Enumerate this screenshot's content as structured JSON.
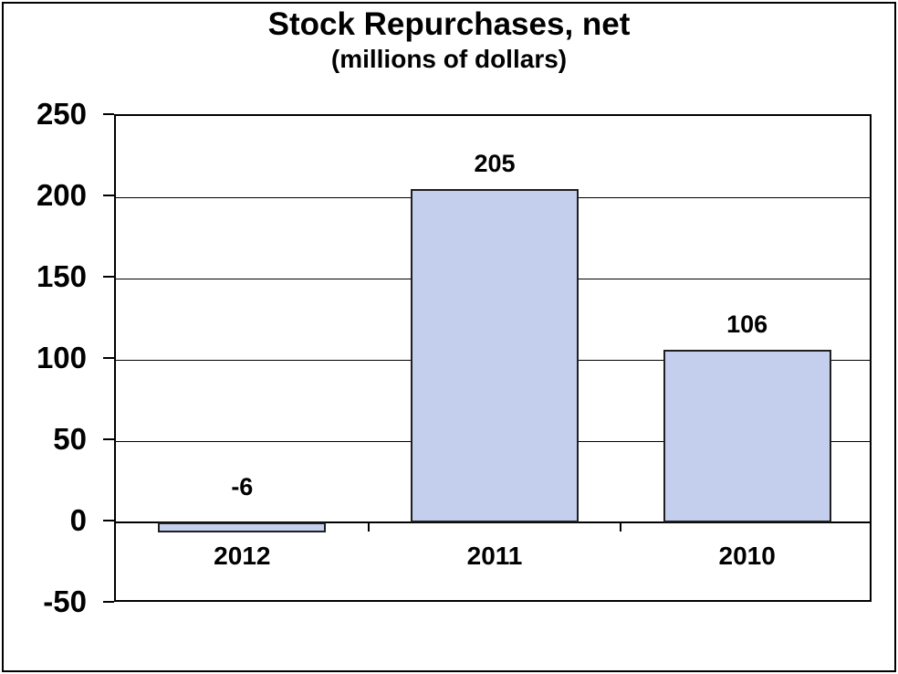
{
  "chart_data": {
    "type": "bar",
    "title": "Stock Repurchases, net",
    "subtitle": "(millions of dollars)",
    "categories": [
      "2012",
      "2011",
      "2010"
    ],
    "values": [
      -6,
      205,
      106
    ],
    "value_labels": [
      "-6",
      "205",
      "106"
    ],
    "ylim": [
      -50,
      250
    ],
    "ytick_step": 50,
    "ytick_labels": [
      "250",
      "200",
      "150",
      "100",
      "50",
      "0",
      "-50"
    ],
    "grid": true,
    "legend": "none",
    "colors": {
      "bar_fill": "#C3CFED",
      "bar_border": "#1F1F1F",
      "axis": "#000000",
      "text": "#000000",
      "background": "#FFFFFF"
    }
  }
}
